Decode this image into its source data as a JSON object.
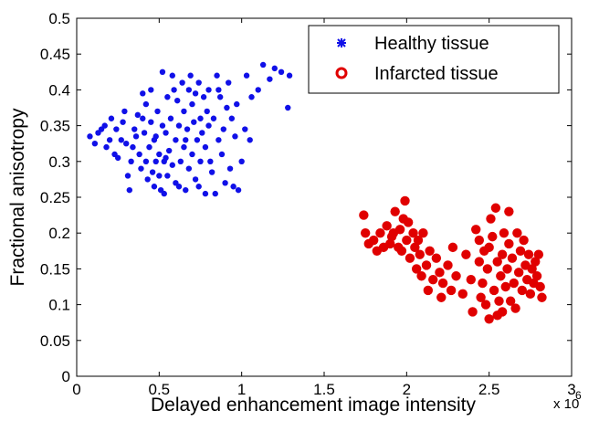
{
  "chart_data": {
    "type": "scatter",
    "title": "",
    "xlabel": "Delayed enhancement image intensity",
    "ylabel": "Fractional anisotropy",
    "x_multiplier": {
      "base": "x 10",
      "exponent": "6"
    },
    "xlim": [
      0,
      3
    ],
    "ylim": [
      0,
      0.5
    ],
    "xticks": [
      "0",
      "0.5",
      "1",
      "1.5",
      "2",
      "2.5",
      "3"
    ],
    "yticks": [
      "0",
      "0.05",
      "0.1",
      "0.15",
      "0.2",
      "0.25",
      "0.3",
      "0.35",
      "0.4",
      "0.45",
      "0.5"
    ],
    "grid": false,
    "legend_position": "top-right",
    "series": [
      {
        "name": "Healthy tissue",
        "color": "#1010e8",
        "marker": "asterisk-dot",
        "points": [
          [
            0.08,
            0.335
          ],
          [
            0.11,
            0.325
          ],
          [
            0.13,
            0.34
          ],
          [
            0.15,
            0.345
          ],
          [
            0.17,
            0.35
          ],
          [
            0.18,
            0.32
          ],
          [
            0.2,
            0.33
          ],
          [
            0.21,
            0.36
          ],
          [
            0.23,
            0.31
          ],
          [
            0.24,
            0.345
          ],
          [
            0.25,
            0.305
          ],
          [
            0.27,
            0.33
          ],
          [
            0.28,
            0.355
          ],
          [
            0.29,
            0.37
          ],
          [
            0.3,
            0.325
          ],
          [
            0.31,
            0.28
          ],
          [
            0.32,
            0.26
          ],
          [
            0.33,
            0.3
          ],
          [
            0.34,
            0.32
          ],
          [
            0.35,
            0.345
          ],
          [
            0.36,
            0.335
          ],
          [
            0.37,
            0.365
          ],
          [
            0.38,
            0.31
          ],
          [
            0.39,
            0.29
          ],
          [
            0.4,
            0.36
          ],
          [
            0.4,
            0.395
          ],
          [
            0.41,
            0.34
          ],
          [
            0.42,
            0.3
          ],
          [
            0.42,
            0.38
          ],
          [
            0.43,
            0.275
          ],
          [
            0.44,
            0.32
          ],
          [
            0.45,
            0.355
          ],
          [
            0.46,
            0.285
          ],
          [
            0.47,
            0.265
          ],
          [
            0.48,
            0.3
          ],
          [
            0.48,
            0.335
          ],
          [
            0.49,
            0.37
          ],
          [
            0.5,
            0.31
          ],
          [
            0.5,
            0.28
          ],
          [
            0.51,
            0.26
          ],
          [
            0.52,
            0.35
          ],
          [
            0.52,
            0.425
          ],
          [
            0.53,
            0.3
          ],
          [
            0.53,
            0.255
          ],
          [
            0.54,
            0.34
          ],
          [
            0.55,
            0.28
          ],
          [
            0.55,
            0.39
          ],
          [
            0.56,
            0.315
          ],
          [
            0.57,
            0.36
          ],
          [
            0.58,
            0.295
          ],
          [
            0.59,
            0.4
          ],
          [
            0.6,
            0.33
          ],
          [
            0.6,
            0.27
          ],
          [
            0.61,
            0.385
          ],
          [
            0.62,
            0.35
          ],
          [
            0.63,
            0.3
          ],
          [
            0.64,
            0.41
          ],
          [
            0.65,
            0.37
          ],
          [
            0.65,
            0.32
          ],
          [
            0.66,
            0.26
          ],
          [
            0.67,
            0.345
          ],
          [
            0.68,
            0.4
          ],
          [
            0.68,
            0.29
          ],
          [
            0.69,
            0.42
          ],
          [
            0.7,
            0.38
          ],
          [
            0.7,
            0.31
          ],
          [
            0.71,
            0.355
          ],
          [
            0.72,
            0.395
          ],
          [
            0.72,
            0.275
          ],
          [
            0.73,
            0.33
          ],
          [
            0.74,
            0.41
          ],
          [
            0.75,
            0.36
          ],
          [
            0.75,
            0.3
          ],
          [
            0.76,
            0.34
          ],
          [
            0.77,
            0.39
          ],
          [
            0.78,
            0.32
          ],
          [
            0.78,
            0.255
          ],
          [
            0.79,
            0.37
          ],
          [
            0.8,
            0.35
          ],
          [
            0.8,
            0.4
          ],
          [
            0.81,
            0.3
          ],
          [
            0.82,
            0.285
          ],
          [
            0.83,
            0.36
          ],
          [
            0.84,
            0.255
          ],
          [
            0.85,
            0.42
          ],
          [
            0.86,
            0.33
          ],
          [
            0.87,
            0.39
          ],
          [
            0.88,
            0.31
          ],
          [
            0.89,
            0.345
          ],
          [
            0.9,
            0.27
          ],
          [
            0.91,
            0.375
          ],
          [
            0.92,
            0.41
          ],
          [
            0.93,
            0.29
          ],
          [
            0.94,
            0.36
          ],
          [
            0.95,
            0.265
          ],
          [
            0.96,
            0.335
          ],
          [
            0.97,
            0.38
          ],
          [
            0.98,
            0.26
          ],
          [
            1.0,
            0.3
          ],
          [
            1.02,
            0.345
          ],
          [
            1.03,
            0.42
          ],
          [
            1.05,
            0.33
          ],
          [
            1.06,
            0.39
          ],
          [
            1.1,
            0.4
          ],
          [
            1.13,
            0.435
          ],
          [
            1.17,
            0.415
          ],
          [
            1.2,
            0.43
          ],
          [
            1.24,
            0.425
          ],
          [
            1.28,
            0.375
          ],
          [
            1.29,
            0.42
          ],
          [
            0.45,
            0.4
          ],
          [
            0.58,
            0.42
          ],
          [
            0.62,
            0.265
          ],
          [
            0.74,
            0.265
          ],
          [
            0.86,
            0.4
          ],
          [
            0.66,
            0.33
          ],
          [
            0.54,
            0.305
          ],
          [
            0.47,
            0.33
          ]
        ]
      },
      {
        "name": "Infarcted tissue",
        "color": "#e00000",
        "marker": "filled-circle",
        "points": [
          [
            1.74,
            0.225
          ],
          [
            1.75,
            0.2
          ],
          [
            1.77,
            0.185
          ],
          [
            1.8,
            0.19
          ],
          [
            1.82,
            0.175
          ],
          [
            1.84,
            0.2
          ],
          [
            1.86,
            0.18
          ],
          [
            1.88,
            0.21
          ],
          [
            1.9,
            0.185
          ],
          [
            1.91,
            0.195
          ],
          [
            1.93,
            0.23
          ],
          [
            1.95,
            0.18
          ],
          [
            1.96,
            0.205
          ],
          [
            1.97,
            0.175
          ],
          [
            1.98,
            0.22
          ],
          [
            1.99,
            0.245
          ],
          [
            2.0,
            0.19
          ],
          [
            2.01,
            0.215
          ],
          [
            2.02,
            0.165
          ],
          [
            2.04,
            0.2
          ],
          [
            2.05,
            0.18
          ],
          [
            2.06,
            0.15
          ],
          [
            2.08,
            0.17
          ],
          [
            2.09,
            0.14
          ],
          [
            2.1,
            0.2
          ],
          [
            2.12,
            0.155
          ],
          [
            2.13,
            0.12
          ],
          [
            2.14,
            0.175
          ],
          [
            2.16,
            0.135
          ],
          [
            2.18,
            0.165
          ],
          [
            2.2,
            0.145
          ],
          [
            2.21,
            0.11
          ],
          [
            2.22,
            0.13
          ],
          [
            2.25,
            0.155
          ],
          [
            2.27,
            0.12
          ],
          [
            2.3,
            0.14
          ],
          [
            2.34,
            0.115
          ],
          [
            2.36,
            0.17
          ],
          [
            2.39,
            0.135
          ],
          [
            2.4,
            0.09
          ],
          [
            2.42,
            0.205
          ],
          [
            2.44,
            0.19
          ],
          [
            2.45,
            0.11
          ],
          [
            2.46,
            0.13
          ],
          [
            2.47,
            0.175
          ],
          [
            2.48,
            0.1
          ],
          [
            2.49,
            0.15
          ],
          [
            2.5,
            0.08
          ],
          [
            2.51,
            0.22
          ],
          [
            2.52,
            0.195
          ],
          [
            2.53,
            0.12
          ],
          [
            2.54,
            0.235
          ],
          [
            2.55,
            0.16
          ],
          [
            2.55,
            0.085
          ],
          [
            2.56,
            0.105
          ],
          [
            2.57,
            0.14
          ],
          [
            2.58,
            0.17
          ],
          [
            2.59,
            0.2
          ],
          [
            2.6,
            0.125
          ],
          [
            2.61,
            0.15
          ],
          [
            2.62,
            0.185
          ],
          [
            2.63,
            0.105
          ],
          [
            2.64,
            0.165
          ],
          [
            2.65,
            0.13
          ],
          [
            2.66,
            0.095
          ],
          [
            2.67,
            0.2
          ],
          [
            2.68,
            0.145
          ],
          [
            2.69,
            0.175
          ],
          [
            2.7,
            0.12
          ],
          [
            2.71,
            0.19
          ],
          [
            2.72,
            0.155
          ],
          [
            2.73,
            0.135
          ],
          [
            2.74,
            0.17
          ],
          [
            2.75,
            0.115
          ],
          [
            2.76,
            0.15
          ],
          [
            2.77,
            0.13
          ],
          [
            2.78,
            0.16
          ],
          [
            2.79,
            0.14
          ],
          [
            2.8,
            0.17
          ],
          [
            2.81,
            0.125
          ],
          [
            2.82,
            0.11
          ],
          [
            2.62,
            0.23
          ],
          [
            2.5,
            0.18
          ],
          [
            2.44,
            0.16
          ],
          [
            2.58,
            0.09
          ],
          [
            2.28,
            0.18
          ],
          [
            1.92,
            0.2
          ],
          [
            2.07,
            0.19
          ]
        ]
      }
    ]
  }
}
